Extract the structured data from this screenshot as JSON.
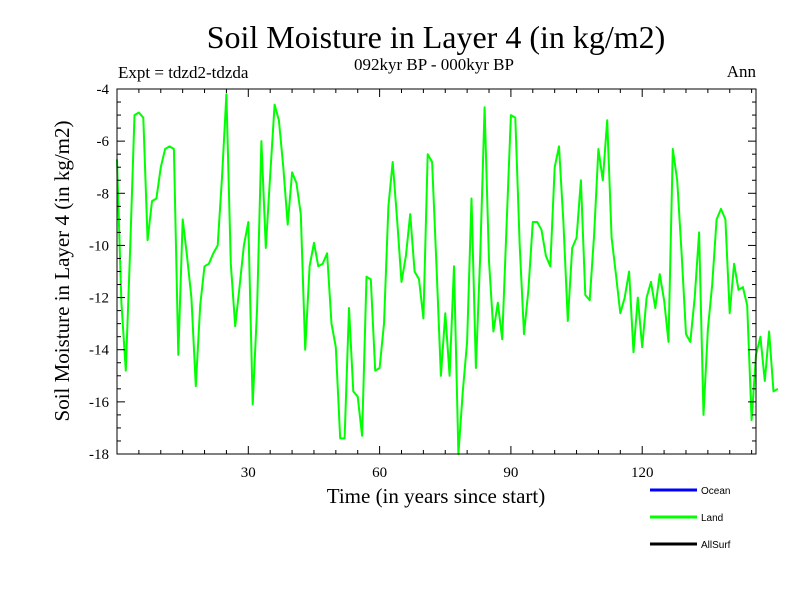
{
  "chart_data": {
    "type": "line",
    "title": "Soil Moisture in Layer 4 (in kg/m2)",
    "subtitle": "092kyr BP - 000kyr BP",
    "experiment": "Expt = tdzd2-tdzda",
    "season": "Ann",
    "xlabel": "Time (in years since start)",
    "ylabel": "Soil Moisture in Layer 4 (in kg/m2)",
    "xlim": [
      0,
      146
    ],
    "ylim": [
      -18,
      -4
    ],
    "x_ticks": [
      30,
      60,
      90,
      120
    ],
    "x_tick_labels": [
      "30",
      "60",
      "90",
      "120"
    ],
    "y_ticks": [
      -18,
      -16,
      -14,
      -12,
      -10,
      -8,
      -6,
      -4
    ],
    "y_tick_labels": [
      "-18",
      "-16",
      "-14",
      "-12",
      "-10",
      "-8",
      "-6",
      "-4"
    ],
    "legend": [
      {
        "name": "Ocean",
        "color": "#0000ff"
      },
      {
        "name": "Land",
        "color": "#00ff00"
      },
      {
        "name": "AllSurf",
        "color": "#000000"
      }
    ],
    "series": [
      {
        "name": "Land",
        "color": "#00ff00",
        "x_start": 0,
        "x_step": 1,
        "values": [
          -6.7,
          -12.2,
          -14.8,
          -10.2,
          -5.0,
          -4.9,
          -5.1,
          -9.8,
          -8.3,
          -8.2,
          -7.0,
          -6.3,
          -6.2,
          -6.3,
          -14.2,
          -9.0,
          -10.4,
          -12.0,
          -15.4,
          -12.3,
          -10.8,
          -10.7,
          -10.3,
          -10.0,
          -7.4,
          -4.2,
          -10.7,
          -13.1,
          -11.6,
          -10.0,
          -9.1,
          -16.1,
          -12.4,
          -6.0,
          -10.1,
          -7.3,
          -4.6,
          -5.2,
          -7.0,
          -9.2,
          -7.2,
          -7.6,
          -8.8,
          -14.0,
          -10.8,
          -9.9,
          -10.8,
          -10.7,
          -10.3,
          -13.0,
          -13.9,
          -17.4,
          -17.4,
          -12.4,
          -15.6,
          -15.8,
          -17.3,
          -11.2,
          -11.3,
          -14.8,
          -14.7,
          -13.0,
          -8.5,
          -6.8,
          -9.0,
          -11.4,
          -10.4,
          -8.8,
          -11.0,
          -11.3,
          -12.8,
          -6.5,
          -6.8,
          -10.8,
          -15.0,
          -12.6,
          -15.0,
          -10.8,
          -18.0,
          -15.6,
          -13.7,
          -8.2,
          -14.7,
          -10.3,
          -4.7,
          -10.6,
          -13.3,
          -12.2,
          -13.6,
          -9.3,
          -5.0,
          -5.1,
          -10.0,
          -13.4,
          -11.7,
          -9.1,
          -9.1,
          -9.4,
          -10.4,
          -10.8,
          -7.0,
          -6.2,
          -9.1,
          -12.9,
          -10.1,
          -9.7,
          -7.5,
          -11.9,
          -12.1,
          -9.6,
          -6.3,
          -7.5,
          -5.2,
          -9.7,
          -11.1,
          -12.6,
          -12.0,
          -11.0,
          -14.1,
          -12.0,
          -13.9,
          -12.0,
          -11.4,
          -12.4,
          -11.1,
          -12.1,
          -13.7,
          -6.3,
          -7.5,
          -10.3,
          -13.4,
          -13.7,
          -12.0,
          -9.5,
          -16.5,
          -13.2,
          -11.5,
          -9.0,
          -8.6,
          -9.0,
          -12.6,
          -10.7,
          -11.7,
          -11.6,
          -12.3,
          -16.7,
          -14.2,
          -13.5,
          -15.2,
          -13.3,
          -15.6,
          -15.5
        ]
      }
    ]
  }
}
